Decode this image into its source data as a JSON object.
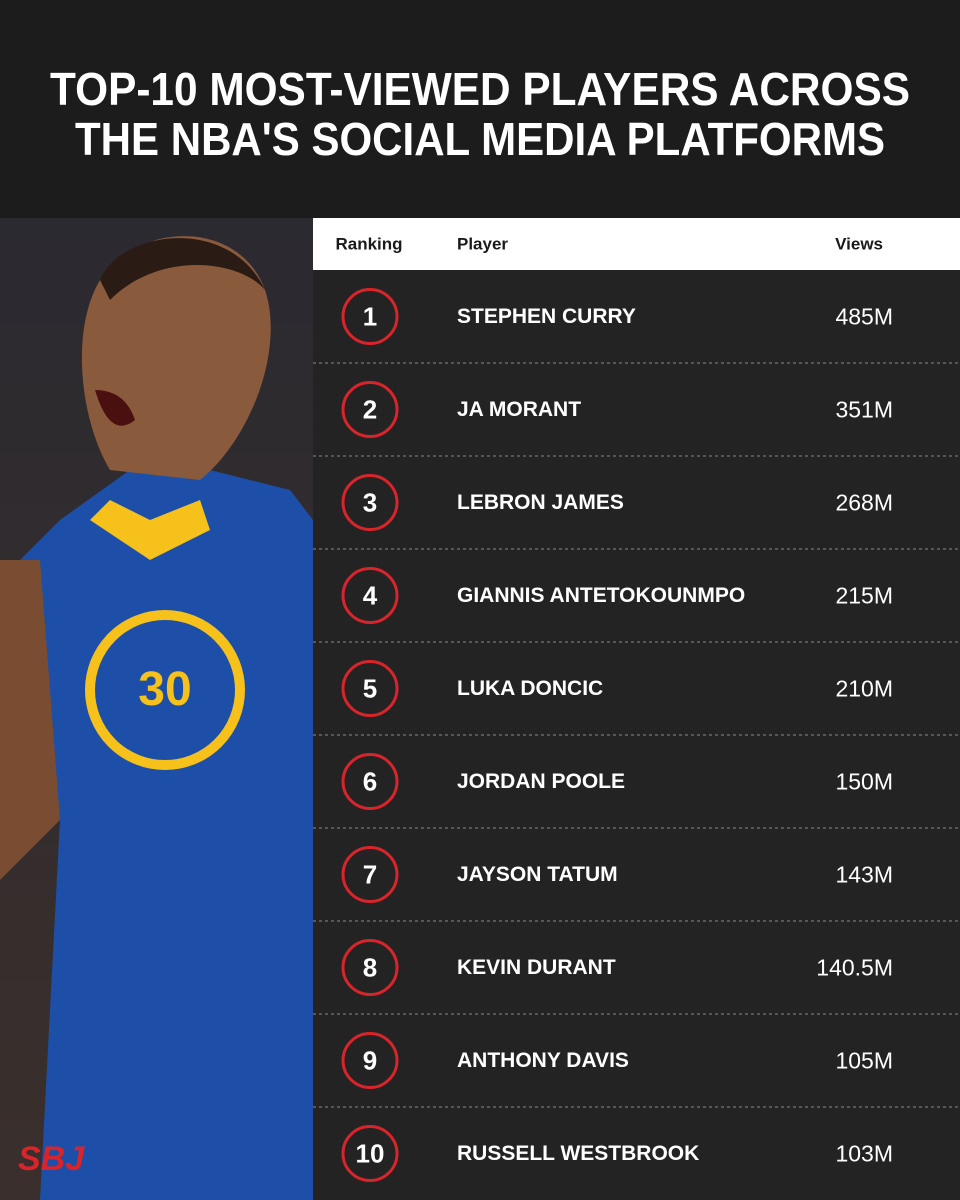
{
  "header": {
    "title_lines": [
      "TOP-10 MOST-VIEWED PLAYERS ACROSS",
      "THE NBA'S SOCIAL MEDIA PLATFORMS"
    ]
  },
  "table": {
    "columns": [
      "Ranking",
      "Player",
      "Views"
    ],
    "rows": [
      [
        "1",
        "STEPHEN CURRY",
        "485M"
      ],
      [
        "2",
        "JA MORANT",
        "351M"
      ],
      [
        "3",
        "LEBRON JAMES",
        "268M"
      ],
      [
        "4",
        "GIANNIS ANTETOKOUNMPO",
        "215M"
      ],
      [
        "5",
        "LUKA DONCIC",
        "210M"
      ],
      [
        "6",
        "JORDAN POOLE",
        "150M"
      ],
      [
        "7",
        "JAYSON TATUM",
        "143M"
      ],
      [
        "8",
        "KEVIN DURANT",
        "140.5M"
      ],
      [
        "9",
        "ANTHONY DAVIS",
        "105M"
      ],
      [
        "10",
        "RUSSELL WESTBROOK",
        "103M"
      ]
    ]
  },
  "logo": "SBJ"
}
